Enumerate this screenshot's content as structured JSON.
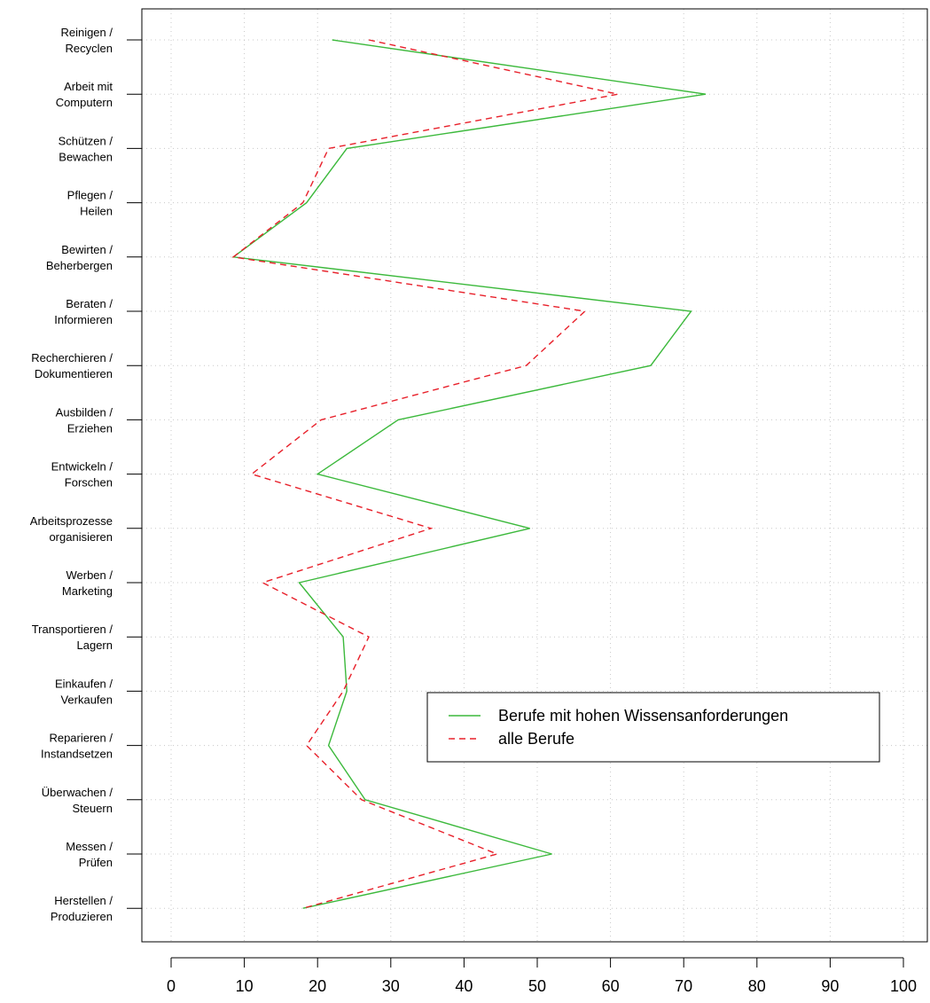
{
  "chart_data": {
    "type": "line",
    "orientation": "horizontal",
    "title": "",
    "xlabel": "",
    "ylabel": "",
    "xlim": [
      0,
      100
    ],
    "x_ticks": [
      0,
      10,
      20,
      30,
      40,
      50,
      60,
      70,
      80,
      90,
      100
    ],
    "grid": true,
    "legend_position": "bottom-right",
    "categories": [
      "Reinigen /\nRecyclen",
      "Arbeit mit\nComputern",
      "Schützen /\nBewachen",
      "Pflegen /\nHeilen",
      "Bewirten /\nBeherbergen",
      "Beraten /\nInformieren",
      "Recherchieren /\nDokumentieren",
      "Ausbilden /\nErziehen",
      "Entwickeln /\nForschen",
      "Arbeitsprozesse\norganisieren",
      "Werben /\nMarketing",
      "Transportieren /\nLagern",
      "Einkaufen /\nVerkaufen",
      "Reparieren /\nInstandsetzen",
      "Überwachen /\nSteuern",
      "Messen /\nPrüfen",
      "Herstellen /\nProduzieren"
    ],
    "series": [
      {
        "name": "Berufe mit hohen Wissensanforderungen",
        "color": "#3cb93c",
        "dash": "solid",
        "values": [
          22,
          73,
          24,
          18.5,
          8.5,
          71,
          65.5,
          31,
          20,
          49,
          17.5,
          23.5,
          24,
          21.5,
          26.5,
          52,
          18
        ]
      },
      {
        "name": "alle Berufe",
        "color": "#e8202a",
        "dash": "dashed",
        "values": [
          27,
          61,
          21.5,
          18,
          8.5,
          56.5,
          48.5,
          20.5,
          11,
          35.5,
          12.5,
          27,
          23.5,
          18.5,
          26,
          44.5,
          18
        ]
      }
    ]
  }
}
